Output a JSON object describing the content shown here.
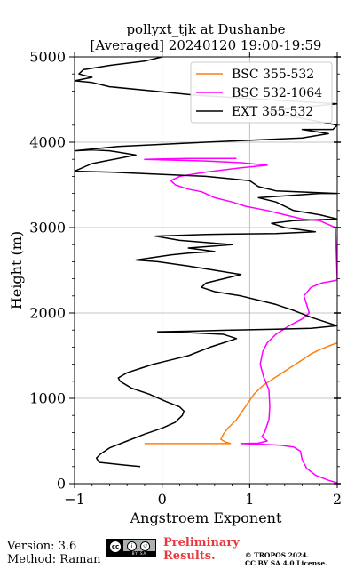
{
  "chart_data": {
    "type": "line",
    "title": [
      "pollyxt_tjk at Dushanbe",
      "[Averaged] 20240120 19:00-19:59"
    ],
    "xlabel": "Angstroem Exponent",
    "ylabel": "Height (m)",
    "xlim": [
      -1,
      2
    ],
    "ylim": [
      0,
      5000
    ],
    "xticks": [
      -1,
      0,
      1,
      2
    ],
    "yticks": [
      0,
      1000,
      2000,
      3000,
      4000,
      5000
    ],
    "grid": true,
    "legend_position": "top-right",
    "series": [
      {
        "name": "BSC 355-532",
        "color": "#ff7f0e",
        "points": [
          [
            -0.2,
            470
          ],
          [
            0.1,
            470
          ],
          [
            0.5,
            470
          ],
          [
            0.78,
            470
          ],
          [
            0.72,
            490
          ],
          [
            0.67,
            520
          ],
          [
            0.7,
            580
          ],
          [
            0.75,
            650
          ],
          [
            0.85,
            750
          ],
          [
            0.95,
            900
          ],
          [
            1.05,
            1050
          ],
          [
            1.15,
            1150
          ],
          [
            1.3,
            1250
          ],
          [
            1.45,
            1350
          ],
          [
            1.6,
            1450
          ],
          [
            1.7,
            1520
          ],
          [
            1.8,
            1570
          ],
          [
            1.92,
            1620
          ],
          [
            2.0,
            1650
          ]
        ]
      },
      {
        "name": "BSC 532-1064",
        "color": "#ff00ff",
        "points": [
          [
            2.0,
            10
          ],
          [
            1.9,
            40
          ],
          [
            1.75,
            100
          ],
          [
            1.65,
            180
          ],
          [
            1.6,
            280
          ],
          [
            1.58,
            380
          ],
          [
            1.5,
            430
          ],
          [
            1.35,
            450
          ],
          [
            1.15,
            460
          ],
          [
            0.9,
            470
          ],
          [
            1.1,
            475
          ],
          [
            1.2,
            500
          ],
          [
            1.14,
            550
          ],
          [
            1.17,
            600
          ],
          [
            1.22,
            750
          ],
          [
            1.23,
            900
          ],
          [
            1.22,
            1100
          ],
          [
            1.16,
            1250
          ],
          [
            1.12,
            1400
          ],
          [
            1.15,
            1550
          ],
          [
            1.2,
            1650
          ],
          [
            1.3,
            1750
          ],
          [
            1.45,
            1850
          ],
          [
            1.6,
            1930
          ],
          [
            1.68,
            2000
          ],
          [
            1.65,
            2100
          ],
          [
            1.62,
            2200
          ],
          [
            1.7,
            2300
          ],
          [
            1.82,
            2350
          ],
          [
            1.98,
            2380
          ],
          [
            2.0,
            2390
          ],
          [
            1.98,
            3000
          ],
          [
            1.8,
            3080
          ],
          [
            1.6,
            3100
          ],
          [
            1.4,
            3150
          ],
          [
            1.2,
            3200
          ],
          [
            0.95,
            3250
          ],
          [
            0.8,
            3300
          ],
          [
            0.6,
            3350
          ],
          [
            0.45,
            3420
          ],
          [
            0.3,
            3450
          ],
          [
            0.15,
            3500
          ],
          [
            0.1,
            3550
          ],
          [
            0.2,
            3600
          ],
          [
            0.5,
            3650
          ],
          [
            0.9,
            3700
          ],
          [
            1.2,
            3730
          ],
          [
            0.9,
            3760
          ],
          [
            0.5,
            3780
          ],
          [
            -0.2,
            3800
          ],
          [
            0.0,
            3805
          ],
          [
            0.3,
            3810
          ],
          [
            0.85,
            3810
          ]
        ]
      },
      {
        "name": "EXT 355-532",
        "color": "#000000",
        "points": [
          [
            -0.25,
            200
          ],
          [
            -0.45,
            220
          ],
          [
            -0.72,
            250
          ],
          [
            -0.75,
            300
          ],
          [
            -0.7,
            350
          ],
          [
            -0.6,
            420
          ],
          [
            -0.4,
            500
          ],
          [
            -0.2,
            580
          ],
          [
            0.0,
            650
          ],
          [
            0.15,
            720
          ],
          [
            0.23,
            800
          ],
          [
            0.25,
            850
          ],
          [
            0.2,
            900
          ],
          [
            0.05,
            960
          ],
          [
            -0.15,
            1050
          ],
          [
            -0.35,
            1120
          ],
          [
            -0.48,
            1200
          ],
          [
            -0.5,
            1240
          ],
          [
            -0.4,
            1300
          ],
          [
            -0.25,
            1350
          ],
          [
            -0.1,
            1400
          ],
          [
            0.1,
            1450
          ],
          [
            0.3,
            1500
          ],
          [
            0.55,
            1600
          ],
          [
            0.85,
            1700
          ],
          [
            0.7,
            1750
          ],
          [
            0.3,
            1770
          ],
          [
            0.0,
            1775
          ],
          [
            -0.05,
            1780
          ],
          [
            0.4,
            1790
          ],
          [
            0.8,
            1800
          ],
          [
            1.3,
            1810
          ],
          [
            1.7,
            1820
          ],
          [
            2.0,
            1850
          ],
          [
            1.7,
            1950
          ],
          [
            1.5,
            2030
          ],
          [
            1.3,
            2100
          ],
          [
            1.1,
            2150
          ],
          [
            0.9,
            2200
          ],
          [
            0.6,
            2250
          ],
          [
            0.45,
            2300
          ],
          [
            0.5,
            2350
          ],
          [
            0.7,
            2400
          ],
          [
            0.9,
            2450
          ],
          [
            0.6,
            2500
          ],
          [
            0.3,
            2550
          ],
          [
            -0.05,
            2600
          ],
          [
            -0.3,
            2620
          ],
          [
            -0.1,
            2650
          ],
          [
            0.1,
            2680
          ],
          [
            0.3,
            2700
          ],
          [
            0.6,
            2720
          ],
          [
            0.3,
            2760
          ],
          [
            0.8,
            2800
          ],
          [
            0.2,
            2850
          ],
          [
            -0.08,
            2900
          ],
          [
            0.5,
            2920
          ],
          [
            1.3,
            2930
          ],
          [
            1.75,
            2950
          ],
          [
            1.4,
            3000
          ],
          [
            1.25,
            3050
          ],
          [
            1.5,
            3080
          ],
          [
            2.0,
            3100
          ],
          [
            1.8,
            3150
          ],
          [
            1.5,
            3200
          ],
          [
            1.3,
            3300
          ],
          [
            1.1,
            3350
          ],
          [
            1.8,
            3400
          ],
          [
            2.0,
            3400
          ],
          [
            1.3,
            3430
          ],
          [
            1.1,
            3480
          ],
          [
            1.0,
            3550
          ],
          [
            0.5,
            3600
          ],
          [
            -0.6,
            3650
          ],
          [
            -1.0,
            3660
          ],
          [
            -0.8,
            3750
          ],
          [
            -0.3,
            3850
          ],
          [
            -0.6,
            3900
          ],
          [
            -0.8,
            3910
          ],
          [
            -1.0,
            3900
          ],
          [
            -0.5,
            3950
          ],
          [
            0.5,
            4000
          ],
          [
            1.6,
            4050
          ],
          [
            1.9,
            4100
          ],
          [
            1.6,
            4150
          ],
          [
            1.95,
            4150
          ],
          [
            2.0,
            4200
          ],
          [
            1.5,
            4300
          ],
          [
            1.2,
            4350
          ],
          [
            1.5,
            4400
          ],
          [
            2.0,
            4450
          ],
          [
            1.2,
            4500
          ],
          [
            0.4,
            4550
          ],
          [
            -0.1,
            4600
          ],
          [
            -0.6,
            4650
          ],
          [
            -0.8,
            4700
          ],
          [
            -1.0,
            4720
          ],
          [
            -0.8,
            4760
          ],
          [
            -0.95,
            4800
          ],
          [
            -0.9,
            4850
          ],
          [
            -0.6,
            4900
          ],
          [
            -0.2,
            4950
          ],
          [
            0.0,
            5000
          ]
        ]
      }
    ]
  },
  "footer": {
    "version": "Version: 3.6",
    "method": "Method: Raman",
    "preliminary_line1": "Preliminary",
    "preliminary_line2": "Results.",
    "copyright_line1": "© TROPOS 2024.",
    "copyright_line2": "CC BY SA 4.0 License.",
    "license_badge": "cc-by-sa-icon"
  }
}
